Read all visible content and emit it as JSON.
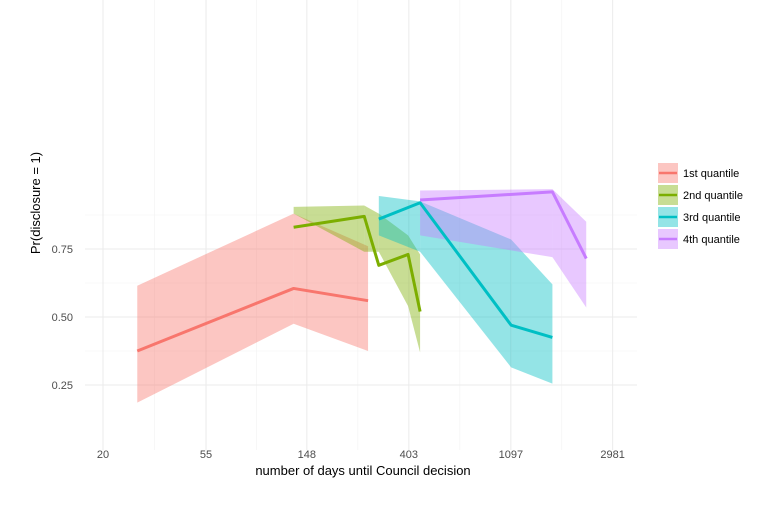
{
  "chart_data": {
    "type": "line",
    "xlabel": "number of days until Council decision",
    "ylabel": "Pr(disclosure = 1)",
    "x_scale": "log",
    "xlim": [
      20,
      3500
    ],
    "ylim": [
      0.15,
      0.97
    ],
    "x_ticks": [
      20,
      55,
      148,
      403,
      1097,
      2981
    ],
    "x_tick_labels": [
      "20",
      "55",
      "148",
      "403",
      "1097",
      "2981"
    ],
    "y_ticks": [
      0.25,
      0.5,
      0.75
    ],
    "y_tick_labels": [
      "0.25",
      "0.50",
      "0.75"
    ],
    "grid": true,
    "legend_position": "right",
    "legend_title": "",
    "series": [
      {
        "name": "1st quantile",
        "color": "#F8766D",
        "x": [
          28,
          130,
          270
        ],
        "y": [
          0.375,
          0.605,
          0.56
        ],
        "lower": [
          0.185,
          0.475,
          0.375
        ],
        "upper": [
          0.615,
          0.88,
          0.76
        ]
      },
      {
        "name": "2nd quantile",
        "color": "#7CAE00",
        "x": [
          130,
          260,
          300,
          400,
          450
        ],
        "y": [
          0.83,
          0.87,
          0.69,
          0.73,
          0.52
        ],
        "lower": [
          0.88,
          0.74,
          0.74,
          0.54,
          0.37
        ],
        "upper": [
          0.905,
          0.91,
          0.88,
          0.8,
          0.73
        ]
      },
      {
        "name": "3rd quantile",
        "color": "#00BFC4",
        "x": [
          300,
          450,
          1100,
          1650
        ],
        "y": [
          0.86,
          0.92,
          0.47,
          0.425
        ],
        "lower": [
          0.8,
          0.74,
          0.315,
          0.255
        ],
        "upper": [
          0.945,
          0.925,
          0.785,
          0.62
        ]
      },
      {
        "name": "4th quantile",
        "color": "#C77CFF",
        "x": [
          450,
          1650,
          2300
        ],
        "y": [
          0.93,
          0.96,
          0.715
        ],
        "lower": [
          0.8,
          0.72,
          0.535
        ],
        "upper": [
          0.965,
          0.97,
          0.85
        ]
      }
    ]
  }
}
